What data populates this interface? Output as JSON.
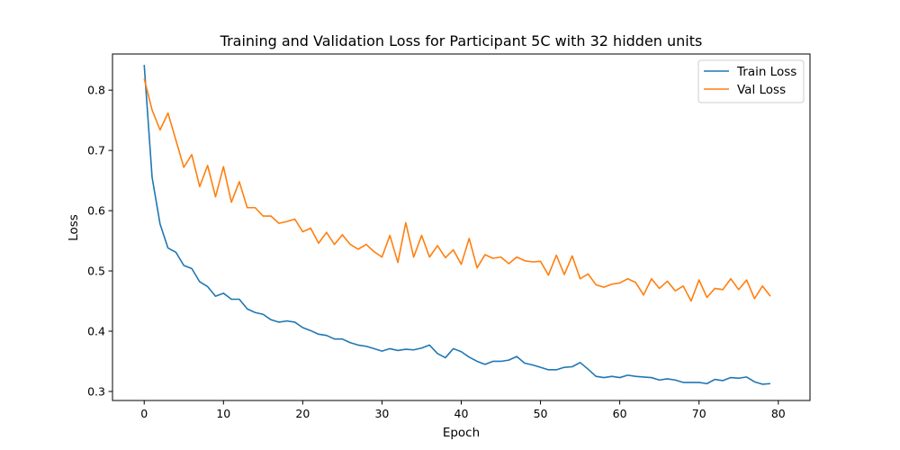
{
  "chart_data": {
    "type": "line",
    "title": "Training and Validation Loss for Participant 5C with 32 hidden units",
    "xlabel": "Epoch",
    "ylabel": "Loss",
    "xlim": [
      -4,
      84
    ],
    "ylim": [
      0.285,
      0.86
    ],
    "xticks": [
      0,
      10,
      20,
      30,
      40,
      50,
      60,
      70,
      80
    ],
    "yticks": [
      0.3,
      0.4,
      0.5,
      0.6,
      0.7,
      0.8
    ],
    "grid": false,
    "legend_position": "top-right",
    "x": [
      0,
      1,
      2,
      3,
      4,
      5,
      6,
      7,
      8,
      9,
      10,
      11,
      12,
      13,
      14,
      15,
      16,
      17,
      18,
      19,
      20,
      21,
      22,
      23,
      24,
      25,
      26,
      27,
      28,
      29,
      30,
      31,
      32,
      33,
      34,
      35,
      36,
      37,
      38,
      39,
      40,
      41,
      42,
      43,
      44,
      45,
      46,
      47,
      48,
      49,
      50,
      51,
      52,
      53,
      54,
      55,
      56,
      57,
      58,
      59,
      60,
      61,
      62,
      63,
      64,
      65,
      66,
      67,
      68,
      69,
      70,
      71,
      72,
      73,
      74,
      75,
      76,
      77,
      78,
      79
    ],
    "series": [
      {
        "name": "Train Loss",
        "color": "#1f77b4",
        "values": [
          0.842,
          0.655,
          0.578,
          0.538,
          0.531,
          0.509,
          0.504,
          0.482,
          0.474,
          0.458,
          0.463,
          0.453,
          0.453,
          0.437,
          0.431,
          0.428,
          0.419,
          0.415,
          0.417,
          0.415,
          0.406,
          0.401,
          0.395,
          0.393,
          0.387,
          0.387,
          0.381,
          0.377,
          0.375,
          0.371,
          0.367,
          0.371,
          0.368,
          0.37,
          0.369,
          0.372,
          0.377,
          0.363,
          0.356,
          0.371,
          0.366,
          0.357,
          0.35,
          0.345,
          0.35,
          0.35,
          0.352,
          0.358,
          0.347,
          0.344,
          0.34,
          0.336,
          0.336,
          0.34,
          0.341,
          0.348,
          0.337,
          0.325,
          0.323,
          0.325,
          0.323,
          0.327,
          0.325,
          0.324,
          0.323,
          0.319,
          0.321,
          0.319,
          0.315,
          0.315,
          0.315,
          0.313,
          0.32,
          0.318,
          0.323,
          0.322,
          0.324,
          0.316,
          0.312,
          0.313
        ]
      },
      {
        "name": "Val Loss",
        "color": "#ff7f0e",
        "values": [
          0.819,
          0.767,
          0.734,
          0.762,
          0.717,
          0.672,
          0.693,
          0.64,
          0.675,
          0.623,
          0.673,
          0.614,
          0.648,
          0.605,
          0.605,
          0.591,
          0.591,
          0.579,
          0.582,
          0.586,
          0.565,
          0.571,
          0.546,
          0.564,
          0.544,
          0.56,
          0.544,
          0.536,
          0.544,
          0.532,
          0.523,
          0.559,
          0.514,
          0.58,
          0.523,
          0.559,
          0.523,
          0.542,
          0.522,
          0.535,
          0.511,
          0.554,
          0.505,
          0.527,
          0.521,
          0.523,
          0.512,
          0.523,
          0.517,
          0.515,
          0.516,
          0.493,
          0.526,
          0.494,
          0.525,
          0.487,
          0.495,
          0.477,
          0.473,
          0.478,
          0.48,
          0.487,
          0.481,
          0.46,
          0.487,
          0.471,
          0.483,
          0.467,
          0.475,
          0.45,
          0.485,
          0.456,
          0.471,
          0.469,
          0.487,
          0.469,
          0.485,
          0.454,
          0.475,
          0.458
        ]
      }
    ]
  }
}
